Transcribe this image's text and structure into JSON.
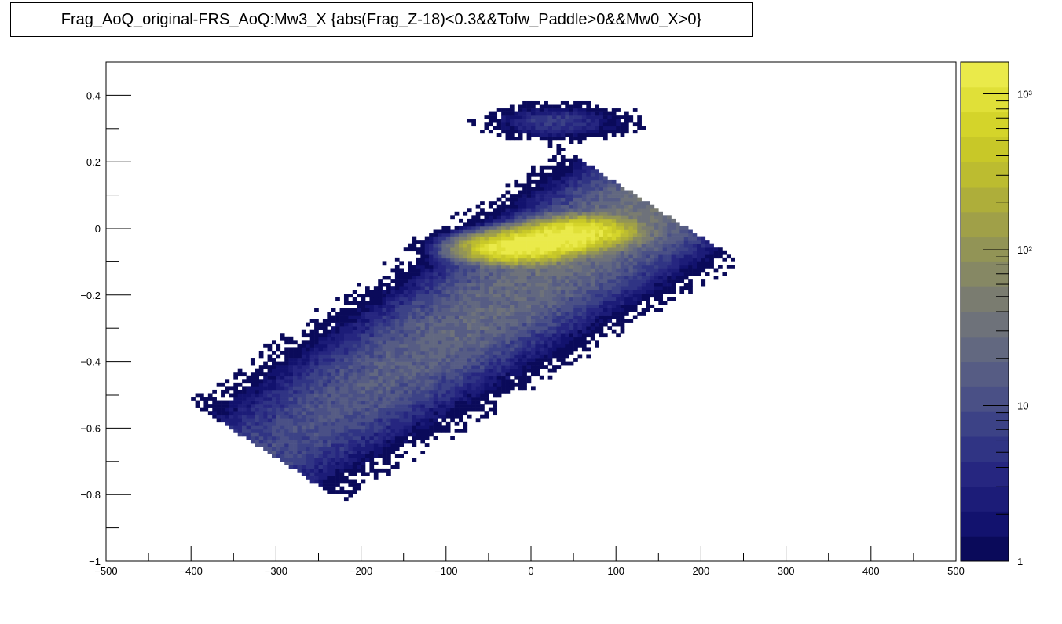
{
  "chart_data": {
    "type": "heatmap",
    "title": "Frag_AoQ_original-FRS_AoQ:Mw3_X {abs(Frag_Z-18)<0.3&&Tofw_Paddle>0&&Mw0_X>0}",
    "xlabel": "",
    "ylabel": "",
    "xlim": [
      -500,
      500
    ],
    "ylim": [
      -1,
      0.5
    ],
    "x_ticks": [
      -500,
      -400,
      -300,
      -200,
      -100,
      0,
      100,
      200,
      300,
      400,
      500
    ],
    "y_ticks": [
      -1,
      -0.8,
      -0.6,
      -0.4,
      -0.2,
      0,
      0.2,
      0.4
    ],
    "y_tick_labels": [
      "−1",
      "−0.8",
      "−0.6",
      "−0.4",
      "−0.2",
      "0",
      "0.2",
      "0.4"
    ],
    "x_tick_labels": [
      "−500",
      "−400",
      "−300",
      "−200",
      "−100",
      "0",
      "100",
      "200",
      "300",
      "400",
      "500"
    ],
    "z_scale": "log",
    "zlim": [
      1,
      1600
    ],
    "z_tick_labels": [
      "1",
      "10",
      "10²",
      "10³"
    ],
    "z_ticks": [
      1,
      10,
      100,
      1000
    ],
    "palette": [
      "#0a0a5a",
      "#12126e",
      "#1c1c78",
      "#262680",
      "#303484",
      "#3c4286",
      "#4a5086",
      "#565c84",
      "#626880",
      "#6e727a",
      "#7a7c70",
      "#868864",
      "#929456",
      "#a0a048",
      "#aeae3a",
      "#bcbc30",
      "#c8c828",
      "#d4d42a",
      "#e0e038",
      "#eaea4a"
    ],
    "grid": false,
    "legend": "colorbar-right",
    "features": [
      {
        "kind": "main-band",
        "x_from": -280,
        "y_from": -0.62,
        "x_to": 110,
        "y_to": 0.02
      },
      {
        "kind": "hot-spot",
        "x": -20,
        "y": -0.06,
        "peak": 1500
      },
      {
        "kind": "hot-spot",
        "x": 20,
        "y": -0.04,
        "peak": 1600
      },
      {
        "kind": "hot-spot",
        "x": 60,
        "y": -0.01,
        "peak": 1400
      },
      {
        "kind": "small-cluster",
        "x": 30,
        "y": 0.32
      }
    ]
  }
}
